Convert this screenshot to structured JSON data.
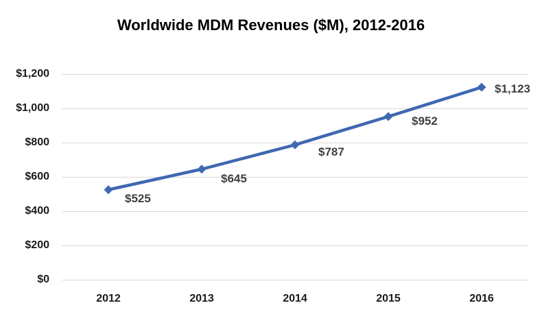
{
  "chart_data": {
    "type": "line",
    "title": "Worldwide MDM Revenues ($M), 2012-2016",
    "categories": [
      "2012",
      "2013",
      "2014",
      "2015",
      "2016"
    ],
    "values": [
      525,
      645,
      787,
      952,
      1123
    ],
    "point_labels": [
      "$525",
      "$645",
      "$787",
      "$952",
      "$1,123"
    ],
    "y_ticks": [
      "$0",
      "$200",
      "$400",
      "$600",
      "$800",
      "$1,000",
      "$1,200"
    ],
    "y_tick_values": [
      0,
      200,
      400,
      600,
      800,
      1000,
      1200
    ],
    "ylim": [
      0,
      1200
    ],
    "xlabel": "",
    "ylabel": "",
    "grid": true,
    "legend": "none",
    "marker": "diamond",
    "colors": {
      "line": "#3e68b0",
      "marker": "#3e68b0",
      "gridline": "#d9d9d9",
      "point_label": "#404040",
      "axis_label": "#1a1a1a",
      "title": "#000000",
      "background": "#ffffff"
    }
  }
}
